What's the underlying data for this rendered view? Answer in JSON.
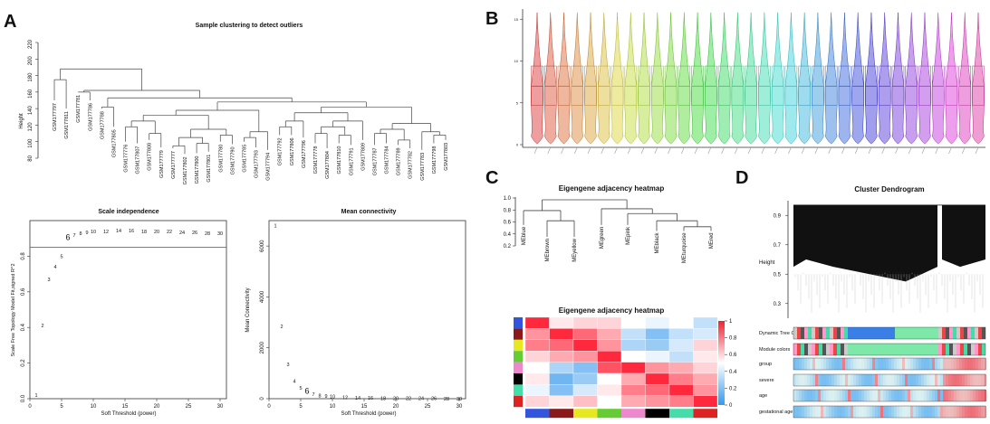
{
  "panels": {
    "a": "A",
    "b": "B",
    "c": "C",
    "d": "D"
  },
  "chart_data": [
    {
      "type": "dendrogram",
      "title": "Sample clustering to detect outliers",
      "ylabel": "Height",
      "ylim": [
        80,
        220
      ],
      "yticks": [
        80,
        100,
        120,
        140,
        160,
        180,
        200,
        220
      ],
      "leaves": [
        "GSM177797",
        "GSM177811",
        "GSM177781",
        "GSM177786",
        "GSM177788",
        "GSM177805",
        "GSM177776",
        "GSM177807",
        "GSM177808",
        "GSM177779",
        "GSM177777",
        "GSM177802",
        "GSM177800",
        "GSM177801",
        "GSM177780",
        "GSM177790",
        "GSM177785",
        "GSM177793",
        "GSM177794",
        "GSM177792",
        "GSM177806",
        "GSM177796",
        "GSM177778",
        "GSM177804",
        "GSM177810",
        "GSM177791",
        "GSM177809",
        "GSM177787",
        "GSM177784",
        "GSM177789",
        "GSM177782",
        "GSM177783",
        "GSM177798",
        "GSM177803"
      ]
    },
    {
      "type": "scatter",
      "title": "Scale independence",
      "xlabel": "Soft Threshold (power)",
      "ylabel": "Scale Free Topology Model Fit,signed R^2",
      "xlim": [
        0,
        31
      ],
      "ylim": [
        0,
        1
      ],
      "xticks": [
        0,
        5,
        10,
        15,
        20,
        25,
        30
      ],
      "yticks": [
        0.0,
        0.2,
        0.4,
        0.6,
        0.8
      ],
      "hline": 0.85,
      "highlight_power": 6,
      "x": [
        1,
        2,
        3,
        4,
        5,
        6,
        7,
        8,
        9,
        10,
        12,
        14,
        16,
        18,
        20,
        22,
        24,
        26,
        28,
        30
      ],
      "y": [
        0.02,
        0.41,
        0.67,
        0.74,
        0.8,
        0.9,
        0.92,
        0.93,
        0.935,
        0.94,
        0.94,
        0.945,
        0.945,
        0.94,
        0.94,
        0.94,
        0.935,
        0.935,
        0.93,
        0.93
      ]
    },
    {
      "type": "scatter",
      "title": "Mean connectivity",
      "xlabel": "Soft Threshold (power)",
      "ylabel": "Mean Connectivity",
      "xlim": [
        0,
        31
      ],
      "ylim": [
        0,
        7000
      ],
      "xticks": [
        0,
        5,
        10,
        15,
        20,
        25,
        30
      ],
      "yticks": [
        0,
        2000,
        4000,
        6000
      ],
      "highlight_power": 6,
      "x": [
        1,
        2,
        3,
        4,
        5,
        6,
        7,
        8,
        9,
        10,
        12,
        14,
        16,
        18,
        20,
        22,
        24,
        26,
        28,
        30
      ],
      "y": [
        6800,
        2850,
        1350,
        700,
        420,
        260,
        180,
        130,
        100,
        80,
        55,
        40,
        30,
        25,
        20,
        15,
        12,
        10,
        8,
        7
      ]
    },
    {
      "type": "violin",
      "count": 34,
      "yticks": [
        0,
        5,
        10,
        15
      ]
    },
    {
      "type": "dendrogram",
      "title": "Eigengene adjacency heatmap",
      "ylim": [
        0.2,
        1.0
      ],
      "yticks": [
        0.2,
        0.4,
        0.6,
        0.8,
        1.0
      ],
      "leaves": [
        "MEblue",
        "MEbrown",
        "MEyellow",
        "MEgreen",
        "MEpink",
        "MEblack",
        "MEturquoise",
        "MEred"
      ]
    },
    {
      "type": "heatmap",
      "title": "Eigengene adjacency heatmap",
      "modules": [
        "blue",
        "brown",
        "yellow",
        "green",
        "pink",
        "black",
        "turquoise",
        "red"
      ],
      "module_colors": [
        "#3355dd",
        "#8a1a1a",
        "#e8e820",
        "#66cc33",
        "#ee88cc",
        "#000000",
        "#44ddaa",
        "#dd2222"
      ],
      "matrix": [
        [
          1.0,
          0.55,
          0.6,
          0.6,
          0.5,
          0.45,
          0.5,
          0.35
        ],
        [
          0.75,
          1.0,
          0.85,
          0.7,
          0.35,
          0.2,
          0.35,
          0.4
        ],
        [
          0.8,
          0.85,
          1.0,
          0.75,
          0.3,
          0.25,
          0.4,
          0.6
        ],
        [
          0.6,
          0.7,
          0.75,
          1.0,
          0.5,
          0.45,
          0.35,
          0.55
        ],
        [
          0.5,
          0.3,
          0.2,
          0.9,
          1.0,
          0.75,
          0.7,
          0.6
        ],
        [
          0.55,
          0.15,
          0.25,
          0.5,
          0.7,
          1.0,
          0.8,
          0.7
        ],
        [
          0.45,
          0.2,
          0.4,
          0.55,
          0.8,
          0.85,
          1.0,
          0.75
        ],
        [
          0.6,
          0.55,
          0.65,
          0.5,
          0.7,
          0.75,
          0.8,
          1.0
        ]
      ],
      "colorbar_ticks": [
        0,
        0.2,
        0.4,
        0.6,
        0.8,
        1
      ]
    },
    {
      "type": "dendrogram",
      "title": "Cluster Dendrogram",
      "ylabel": "Height",
      "ylim": [
        0.2,
        1.0
      ],
      "yticks": [
        0.3,
        0.5,
        0.7,
        0.9
      ],
      "row_labels": [
        "Dynamic Tree Cut",
        "Module colors",
        "group",
        "severe",
        "age",
        "gestational age"
      ]
    }
  ]
}
